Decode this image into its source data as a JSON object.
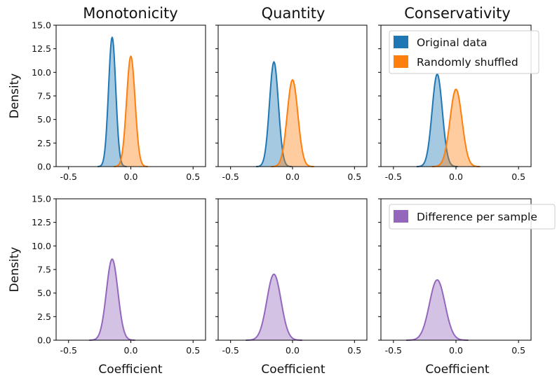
{
  "chart_data": {
    "type": "area",
    "layout": "2 rows x 3 columns of density plots, shared axes",
    "column_titles": [
      "Monotonicity",
      "Quantity",
      "Conservativity"
    ],
    "ylabel": "Density",
    "xlabel": "Coefficient",
    "xlim": [
      -0.6,
      0.6
    ],
    "ylim": [
      0,
      15
    ],
    "xticks": [
      "-0.5",
      "0.0",
      "0.5"
    ],
    "xtick_values": [
      -0.5,
      0.0,
      0.5
    ],
    "yticks": [
      "0.0",
      "2.5",
      "5.0",
      "7.5",
      "10.0",
      "12.5",
      "15.0"
    ],
    "ytick_values": [
      0,
      2.5,
      5,
      7.5,
      10,
      12.5,
      15
    ],
    "colors": {
      "original": "#1f77b4",
      "shuffled": "#ff7f0e",
      "difference": "#9467bd"
    },
    "legend_top": [
      "Original data",
      "Randomly shuffled"
    ],
    "legend_bottom": [
      "Difference per sample"
    ],
    "legend_placement": "upper right of third column",
    "panels": [
      {
        "row": 0,
        "col": 0,
        "series": [
          {
            "key": "original",
            "mean": -0.15,
            "sd": 0.029,
            "peak": 13.7
          },
          {
            "key": "shuffled",
            "mean": 0.0,
            "sd": 0.034,
            "peak": 11.7
          }
        ]
      },
      {
        "row": 0,
        "col": 1,
        "series": [
          {
            "key": "original",
            "mean": -0.15,
            "sd": 0.036,
            "peak": 11.1
          },
          {
            "key": "shuffled",
            "mean": 0.0,
            "sd": 0.043,
            "peak": 9.2
          }
        ]
      },
      {
        "row": 0,
        "col": 2,
        "series": [
          {
            "key": "original",
            "mean": -0.15,
            "sd": 0.041,
            "peak": 9.8
          },
          {
            "key": "shuffled",
            "mean": 0.0,
            "sd": 0.048,
            "peak": 8.2
          }
        ]
      },
      {
        "row": 1,
        "col": 0,
        "series": [
          {
            "key": "difference",
            "mean": -0.15,
            "sd": 0.046,
            "peak": 8.6
          }
        ]
      },
      {
        "row": 1,
        "col": 1,
        "series": [
          {
            "key": "difference",
            "mean": -0.15,
            "sd": 0.057,
            "peak": 7.0
          }
        ]
      },
      {
        "row": 1,
        "col": 2,
        "series": [
          {
            "key": "difference",
            "mean": -0.15,
            "sd": 0.062,
            "peak": 6.4
          }
        ]
      }
    ]
  }
}
